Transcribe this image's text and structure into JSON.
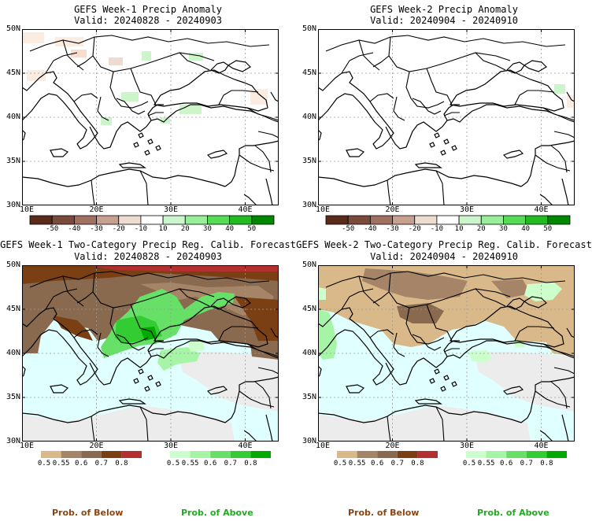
{
  "panels": [
    {
      "title": "GEFS Week-1 Precip Anomaly",
      "valid": "Valid: 20240828 - 20240903",
      "type": "anomaly"
    },
    {
      "title": "GEFS Week-2 Precip Anomaly",
      "valid": "Valid: 20240904 - 20240910",
      "type": "anomaly"
    },
    {
      "title": "GEFS Week-1 Two-Category Precip Reg. Calib. Forecast",
      "valid": "Valid: 20240828 - 20240903",
      "type": "prob"
    },
    {
      "title": "GEFS Week-2 Two-Category Precip Reg. Calib. Forecast",
      "valid": "Valid: 20240904 - 20240910",
      "type": "prob"
    }
  ],
  "axes": {
    "lat_labels": [
      "50N",
      "45N",
      "40N",
      "35N",
      "30N"
    ],
    "lon_labels": [
      "10E",
      "20E",
      "30E",
      "40E"
    ]
  },
  "anomaly_colorbar": {
    "labels": [
      "-50",
      "-40",
      "-30",
      "-20",
      "-10",
      "10",
      "20",
      "30",
      "40",
      "50"
    ],
    "colors": [
      "#5a2a1a",
      "#7a4a3a",
      "#a07060",
      "#c8a090",
      "#eedcd0",
      "#ffffff",
      "#ccf5cc",
      "#99ee99",
      "#55dd55",
      "#22bb22",
      "#008800"
    ]
  },
  "prob_colorbars": {
    "below": {
      "labels": [
        "0.5",
        "0.55",
        "0.6",
        "0.7",
        "0.8"
      ],
      "colors": [
        "#d9b989",
        "#a58468",
        "#8a6a4e",
        "#7a4014",
        "#b43030"
      ]
    },
    "above": {
      "labels": [
        "0.5",
        "0.55",
        "0.6",
        "0.7",
        "0.8"
      ],
      "colors": [
        "#ccffcc",
        "#a6f5a6",
        "#66e066",
        "#33cc33",
        "#00aa00"
      ]
    },
    "below_title": "Prob. of Below",
    "above_title": "Prob. of Above"
  },
  "colors": {
    "sea": "#e0ffff",
    "land_neutral": "#ececec",
    "brown_title": "#8b4513",
    "green_title": "#22aa22"
  }
}
